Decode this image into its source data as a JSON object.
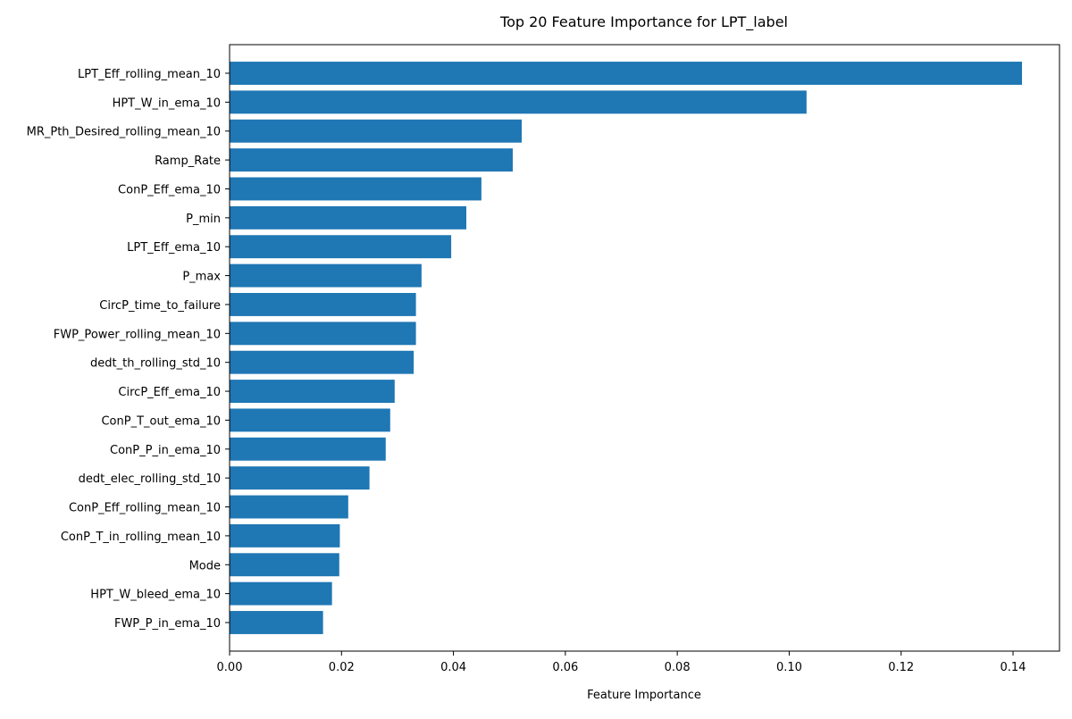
{
  "chart_data": {
    "type": "bar",
    "orientation": "horizontal",
    "title": "Top 20 Feature Importance for LPT_label",
    "xlabel": "Feature Importance",
    "ylabel": "",
    "xlim": [
      0,
      0.1483
    ],
    "xticks": [
      0.0,
      0.02,
      0.04,
      0.06,
      0.08,
      0.1,
      0.12,
      0.14
    ],
    "xtick_labels": [
      "0.00",
      "0.02",
      "0.04",
      "0.06",
      "0.08",
      "0.10",
      "0.12",
      "0.14"
    ],
    "grid": false,
    "bar_color": "#1f77b4",
    "categories": [
      "LPT_Eff_rolling_mean_10",
      "HPT_W_in_ema_10",
      "MR_Pth_Desired_rolling_mean_10",
      "Ramp_Rate",
      "ConP_Eff_ema_10",
      "P_min",
      "LPT_Eff_ema_10",
      "P_max",
      "CircP_time_to_failure",
      "FWP_Power_rolling_mean_10",
      "dedt_th_rolling_std_10",
      "CircP_Eff_ema_10",
      "ConP_T_out_ema_10",
      "ConP_P_in_ema_10",
      "dedt_elec_rolling_std_10",
      "ConP_Eff_rolling_mean_10",
      "ConP_T_in_rolling_mean_10",
      "Mode",
      "HPT_W_bleed_ema_10",
      "FWP_P_in_ema_10"
    ],
    "values": [
      0.1416,
      0.1031,
      0.0522,
      0.0506,
      0.045,
      0.0423,
      0.0396,
      0.0343,
      0.0333,
      0.0333,
      0.0329,
      0.0295,
      0.0287,
      0.0279,
      0.025,
      0.0212,
      0.0197,
      0.0196,
      0.0183,
      0.0167
    ]
  }
}
